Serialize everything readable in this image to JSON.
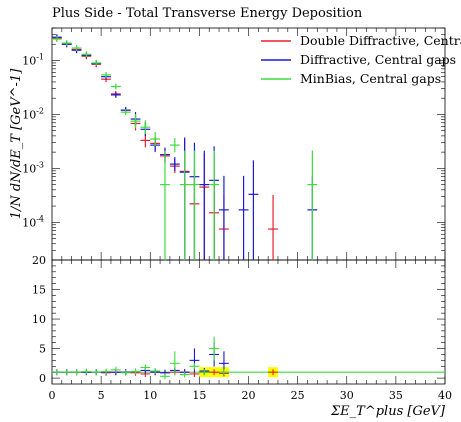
{
  "chart_data": {
    "type": "scatter",
    "title": "Plus Side - Total Transverse Energy Deposition",
    "ylabel": "1/N dN/dE_T [GeV^-1]",
    "xlabel": "ΣE_T^plus [GeV]",
    "xlim": [
      0,
      40
    ],
    "ylim_main": [
      2e-05,
      0.4
    ],
    "yscale_main": "log",
    "ylim_ratio": [
      -1,
      20
    ],
    "x_ticks": [
      "0",
      "5",
      "10",
      "15",
      "20",
      "25",
      "30",
      "35",
      "40"
    ],
    "y_ticks_main": [
      "10^-4",
      "10^-3",
      "10^-2",
      "10^-1"
    ],
    "y_ticks_ratio": [
      "0",
      "5",
      "10",
      "15",
      "20"
    ],
    "legend": {
      "position": "top-right"
    },
    "colors": {
      "red": "#e8202a",
      "blue": "#1a1ad6",
      "green": "#3ddc3d",
      "band": "#ffff00"
    },
    "series": [
      {
        "name": "Double Diffractive, Central gaps",
        "color": "#e8202a",
        "points": [
          {
            "x": 0.5,
            "y": 0.26
          },
          {
            "x": 1.5,
            "y": 0.2
          },
          {
            "x": 2.5,
            "y": 0.16
          },
          {
            "x": 3.5,
            "y": 0.12
          },
          {
            "x": 4.5,
            "y": 0.085
          },
          {
            "x": 5.5,
            "y": 0.045
          },
          {
            "x": 6.5,
            "y": 0.024
          },
          {
            "x": 7.5,
            "y": 0.012
          },
          {
            "x": 8.5,
            "y": 0.0068
          },
          {
            "x": 9.5,
            "y": 0.0033
          },
          {
            "x": 10.5,
            "y": 0.0029
          },
          {
            "x": 11.5,
            "y": 0.0017
          },
          {
            "x": 12.5,
            "y": 0.0011
          },
          {
            "x": 13.5,
            "y": 0.00088
          },
          {
            "x": 14.5,
            "y": 0.00022
          },
          {
            "x": 15.5,
            "y": 0.00045
          },
          {
            "x": 16.5,
            "y": 0.00015
          },
          {
            "x": 17.5,
            "y": 7.5e-05
          },
          {
            "x": 22.5,
            "y": 7.5e-05
          }
        ]
      },
      {
        "name": "Diffractive, Central gaps",
        "color": "#1a1ad6",
        "points": [
          {
            "x": 0.5,
            "y": 0.27
          },
          {
            "x": 1.5,
            "y": 0.2
          },
          {
            "x": 2.5,
            "y": 0.155
          },
          {
            "x": 3.5,
            "y": 0.125
          },
          {
            "x": 4.5,
            "y": 0.088
          },
          {
            "x": 5.5,
            "y": 0.05
          },
          {
            "x": 6.5,
            "y": 0.023
          },
          {
            "x": 7.5,
            "y": 0.012
          },
          {
            "x": 8.5,
            "y": 0.0082
          },
          {
            "x": 9.5,
            "y": 0.0053
          },
          {
            "x": 10.5,
            "y": 0.0027
          },
          {
            "x": 11.5,
            "y": 0.0018
          },
          {
            "x": 12.5,
            "y": 0.0012
          },
          {
            "x": 13.5,
            "y": 0.00085
          },
          {
            "x": 14.5,
            "y": 0.0007
          },
          {
            "x": 15.5,
            "y": 0.0005
          },
          {
            "x": 16.5,
            "y": 0.0006
          },
          {
            "x": 17.5,
            "y": 0.00017
          },
          {
            "x": 19.5,
            "y": 0.00017
          },
          {
            "x": 20.5,
            "y": 0.00033
          },
          {
            "x": 26.5,
            "y": 0.00017
          }
        ]
      },
      {
        "name": "MinBias, Central gaps",
        "color": "#3ddc3d",
        "points": [
          {
            "x": 0.5,
            "y": 0.25
          },
          {
            "x": 1.5,
            "y": 0.21
          },
          {
            "x": 2.5,
            "y": 0.17
          },
          {
            "x": 3.5,
            "y": 0.13
          },
          {
            "x": 4.5,
            "y": 0.09
          },
          {
            "x": 5.5,
            "y": 0.054
          },
          {
            "x": 6.5,
            "y": 0.033
          },
          {
            "x": 7.5,
            "y": 0.011
          },
          {
            "x": 8.5,
            "y": 0.0075
          },
          {
            "x": 9.5,
            "y": 0.0058
          },
          {
            "x": 10.5,
            "y": 0.0035
          },
          {
            "x": 11.5,
            "y": 0.0005
          },
          {
            "x": 12.5,
            "y": 0.0027
          },
          {
            "x": 13.5,
            "y": 0.0005
          },
          {
            "x": 14.5,
            "y": 0.0005
          },
          {
            "x": 16.5,
            "y": 0.0005
          },
          {
            "x": 26.5,
            "y": 0.0005
          }
        ]
      }
    ],
    "ratio": {
      "reference_line": 1,
      "band_color": "#ffff00",
      "series": [
        {
          "name": "Double Diffractive, Central gaps",
          "color": "#e8202a",
          "points": [
            {
              "x": 0.5,
              "y": 1.0
            },
            {
              "x": 1.5,
              "y": 1.0
            },
            {
              "x": 2.5,
              "y": 1.0
            },
            {
              "x": 3.5,
              "y": 1.0
            },
            {
              "x": 4.5,
              "y": 1.0
            },
            {
              "x": 5.5,
              "y": 0.9
            },
            {
              "x": 6.5,
              "y": 1.0
            },
            {
              "x": 7.5,
              "y": 1.0
            },
            {
              "x": 8.5,
              "y": 0.9
            },
            {
              "x": 9.5,
              "y": 0.7
            },
            {
              "x": 10.5,
              "y": 1.0
            },
            {
              "x": 11.5,
              "y": 0.9
            },
            {
              "x": 12.5,
              "y": 1.0
            },
            {
              "x": 13.5,
              "y": 1.0
            },
            {
              "x": 14.5,
              "y": 0.7
            },
            {
              "x": 15.5,
              "y": 1.0
            },
            {
              "x": 16.5,
              "y": 1.0
            },
            {
              "x": 17.5,
              "y": 0.8
            },
            {
              "x": 22.5,
              "y": 1.0
            }
          ]
        },
        {
          "name": "Diffractive, Central gaps",
          "color": "#1a1ad6",
          "points": [
            {
              "x": 0.5,
              "y": 1.0
            },
            {
              "x": 1.5,
              "y": 1.0
            },
            {
              "x": 2.5,
              "y": 1.0
            },
            {
              "x": 3.5,
              "y": 1.0
            },
            {
              "x": 4.5,
              "y": 1.0
            },
            {
              "x": 5.5,
              "y": 1.0
            },
            {
              "x": 6.5,
              "y": 1.0
            },
            {
              "x": 7.5,
              "y": 1.0
            },
            {
              "x": 8.5,
              "y": 1.1
            },
            {
              "x": 9.5,
              "y": 1.3
            },
            {
              "x": 10.5,
              "y": 1.0
            },
            {
              "x": 11.5,
              "y": 0.9
            },
            {
              "x": 12.5,
              "y": 1.3
            },
            {
              "x": 13.5,
              "y": 1.0
            },
            {
              "x": 14.5,
              "y": 3.0
            },
            {
              "x": 15.5,
              "y": 1.2
            },
            {
              "x": 16.5,
              "y": 4.0
            },
            {
              "x": 17.5,
              "y": 2.5
            }
          ]
        },
        {
          "name": "MinBias, Central gaps",
          "color": "#3ddc3d",
          "points": [
            {
              "x": 0.5,
              "y": 1.0
            },
            {
              "x": 1.5,
              "y": 1.0
            },
            {
              "x": 2.5,
              "y": 1.0
            },
            {
              "x": 3.5,
              "y": 1.1
            },
            {
              "x": 4.5,
              "y": 1.0
            },
            {
              "x": 5.5,
              "y": 1.1
            },
            {
              "x": 6.5,
              "y": 1.4
            },
            {
              "x": 7.5,
              "y": 0.9
            },
            {
              "x": 8.5,
              "y": 1.1
            },
            {
              "x": 9.5,
              "y": 1.8
            },
            {
              "x": 10.5,
              "y": 1.2
            },
            {
              "x": 11.5,
              "y": 0.3
            },
            {
              "x": 12.5,
              "y": 2.5
            },
            {
              "x": 13.5,
              "y": 0.6
            },
            {
              "x": 14.5,
              "y": 2.0
            },
            {
              "x": 15.5,
              "y": 1.0
            },
            {
              "x": 16.5,
              "y": 5.0
            },
            {
              "x": 17.5,
              "y": 1.0
            }
          ]
        }
      ],
      "band": [
        {
          "x": 15.5,
          "y": 1.0
        },
        {
          "x": 16.5,
          "y": 1.0
        },
        {
          "x": 17.5,
          "y": 1.0
        },
        {
          "x": 22.5,
          "y": 1.0
        }
      ]
    }
  }
}
